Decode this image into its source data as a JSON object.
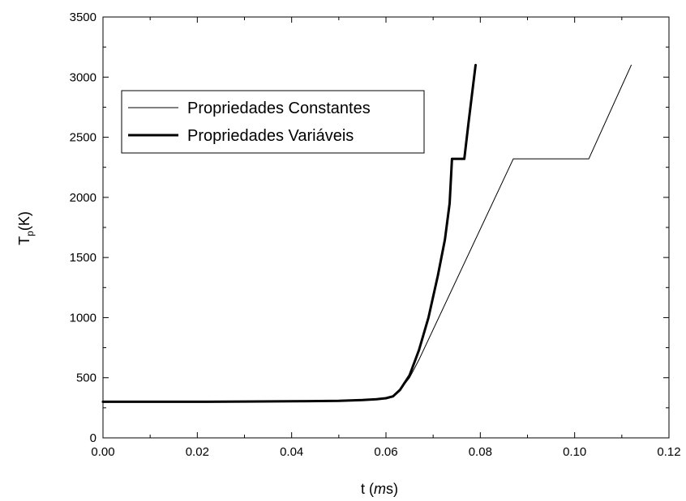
{
  "chart_data": {
    "type": "line",
    "title": "",
    "xlabel": {
      "prefix": "t (",
      "italic": "m",
      "suffix": "s)"
    },
    "ylabel": {
      "main": "T",
      "sub": "p",
      "suffix": "(K)"
    },
    "xlim": [
      0,
      0.12
    ],
    "ylim": [
      0,
      3500
    ],
    "xticks": [
      0,
      0.02,
      0.04,
      0.06,
      0.08,
      0.1,
      0.12
    ],
    "xtick_labels": [
      "0.00",
      "0.02",
      "0.04",
      "0.06",
      "0.08",
      "0.10",
      "0.12"
    ],
    "yticks": [
      0,
      500,
      1000,
      1500,
      2000,
      2500,
      3000,
      3500
    ],
    "ytick_labels": [
      "0",
      "500",
      "1000",
      "1500",
      "2000",
      "2500",
      "3000",
      "3500"
    ],
    "grid": false,
    "legend": "top-left",
    "series": [
      {
        "name": "Propriedades Constantes",
        "style": "thin",
        "x": [
          0.0,
          0.01,
          0.02,
          0.03,
          0.04,
          0.05,
          0.055,
          0.058,
          0.06,
          0.0615,
          0.063,
          0.065,
          0.067,
          0.087,
          0.103,
          0.112
        ],
        "y": [
          300,
          300,
          300,
          302,
          304,
          308,
          315,
          322,
          330,
          345,
          400,
          500,
          650,
          2320,
          2320,
          3100
        ]
      },
      {
        "name": "Propriedades Variáveis",
        "style": "thick",
        "x": [
          0.0,
          0.01,
          0.02,
          0.03,
          0.04,
          0.05,
          0.055,
          0.058,
          0.06,
          0.0615,
          0.063,
          0.065,
          0.067,
          0.069,
          0.071,
          0.0725,
          0.0735,
          0.074,
          0.0766,
          0.0775,
          0.079
        ],
        "y": [
          300,
          300,
          300,
          302,
          304,
          308,
          315,
          322,
          330,
          345,
          400,
          520,
          730,
          1000,
          1350,
          1650,
          1950,
          2320,
          2320,
          2620,
          3100
        ]
      }
    ]
  }
}
